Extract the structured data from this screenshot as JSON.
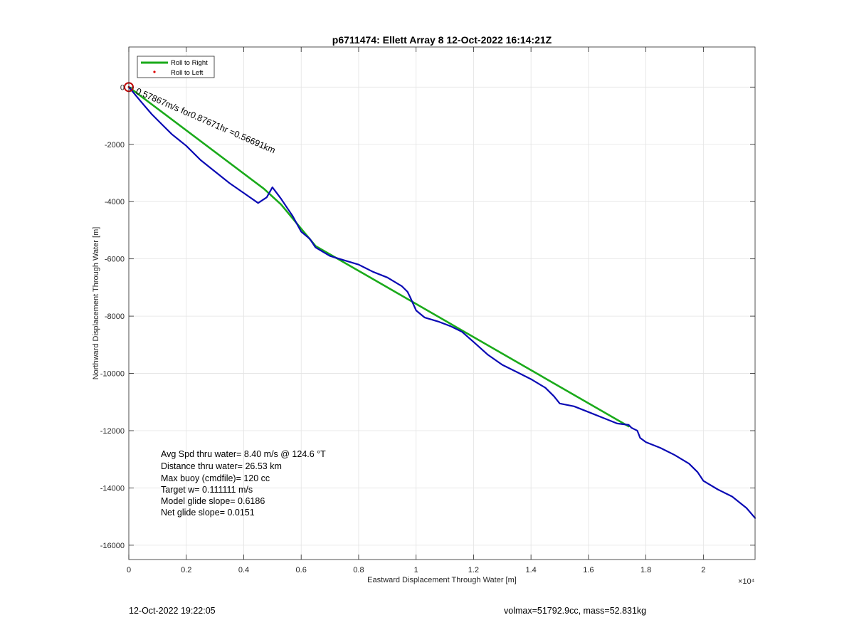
{
  "chart_data": {
    "type": "line",
    "title": "p6711474: Ellett Array 8 12-Oct-2022 16:14:21Z",
    "xlabel": "Eastward Displacement Through Water [m]",
    "ylabel": "Northward Displacement Through Water [m]",
    "x_exponent_label": "×10⁴",
    "xlim": [
      0,
      21800
    ],
    "ylim": [
      -16500,
      1400
    ],
    "x_ticks": [
      0,
      2000,
      4000,
      6000,
      8000,
      10000,
      12000,
      14000,
      16000,
      18000,
      20000
    ],
    "x_tick_labels": [
      "0",
      "0.2",
      "0.4",
      "0.6",
      "0.8",
      "1",
      "1.2",
      "1.4",
      "1.6",
      "1.8",
      "2"
    ],
    "y_ticks": [
      0,
      -2000,
      -4000,
      -6000,
      -8000,
      -10000,
      -12000,
      -14000,
      -16000
    ],
    "y_tick_labels": [
      "0",
      "-2000",
      "-4000",
      "-6000",
      "-8000",
      "-10000",
      "-12000",
      "-14000",
      "-16000"
    ],
    "grid": true,
    "legend_position": "top-left",
    "legend": [
      {
        "label": "Roll to Right",
        "color": "#1aaa1a",
        "style": "line"
      },
      {
        "label": "Roll to Left",
        "color": "#e00000",
        "style": "dot"
      }
    ],
    "series": [
      {
        "color": "#0a0ab4",
        "x": [
          0,
          100,
          250,
          500,
          800,
          1200,
          1500,
          2000,
          2500,
          3000,
          3500,
          4000,
          4500,
          4800,
          5000,
          5300,
          5500,
          5700,
          6000,
          6300,
          6500,
          7000,
          7500,
          8000,
          8500,
          9000,
          9500,
          9700,
          9800,
          10000,
          10300,
          10800,
          11200,
          11600,
          12000,
          12500,
          13000,
          13500,
          14000,
          14500,
          14800,
          15000,
          15500,
          16000,
          16500,
          17000,
          17400,
          17500,
          17700,
          17800,
          18000,
          18500,
          19000,
          19500,
          19800,
          20000,
          20500,
          21000,
          21500,
          21800
        ],
        "y": [
          0,
          -120,
          -300,
          -600,
          -950,
          -1350,
          -1650,
          -2050,
          -2550,
          -2950,
          -3350,
          -3700,
          -4050,
          -3850,
          -3500,
          -3900,
          -4200,
          -4500,
          -5050,
          -5300,
          -5600,
          -5900,
          -6050,
          -6200,
          -6450,
          -6650,
          -6950,
          -7150,
          -7350,
          -7800,
          -8050,
          -8200,
          -8350,
          -8550,
          -8900,
          -9350,
          -9700,
          -9950,
          -10200,
          -10500,
          -10800,
          -11050,
          -11150,
          -11350,
          -11550,
          -11750,
          -11800,
          -11900,
          -12000,
          -12250,
          -12400,
          -12600,
          -12850,
          -13150,
          -13450,
          -13750,
          -14050,
          -14300,
          -14700,
          -15050
        ]
      },
      {
        "name": "Roll to Right",
        "color": "#1aaa1a",
        "x": [
          0,
          4700,
          5300,
          6500,
          17400
        ],
        "y": [
          0,
          -3550,
          -4100,
          -5550,
          -11850
        ]
      }
    ],
    "roll_to_left_marker": {
      "x": 0,
      "y": 0
    },
    "annotation": "0.57867m/s for0.87671hr =0.56691km",
    "stats": [
      "Avg Spd thru water=  8.40 m/s @ 124.6 °T",
      "Distance thru water= 26.53 km",
      "Max buoy (cmdfile)= 120 cc",
      "Target w= 0.111111 m/s",
      "Model glide slope= 0.6186",
      "Net glide slope= 0.0151"
    ]
  },
  "footer": {
    "left": "12-Oct-2022 19:22:05",
    "right": "volmax=51792.9cc, mass=52.831kg"
  }
}
